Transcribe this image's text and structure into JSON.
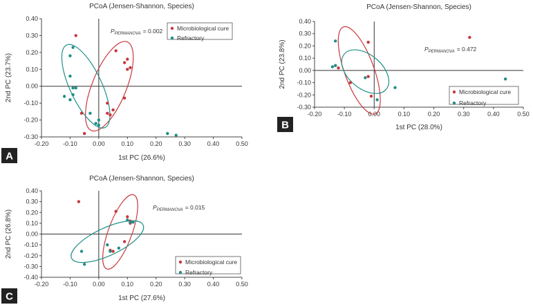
{
  "colors": {
    "cure": "#c8373b",
    "refractory": "#1f8f88",
    "panel_box": "#222222"
  },
  "chart_data": [
    {
      "id": "A",
      "type": "scatter",
      "panel_label": "A",
      "title": "PCoA (Jensen-Shannon, Species)",
      "xlabel": "1st PC (26.6%)",
      "ylabel": "2nd PC (23.7%)",
      "xlim": [
        -0.2,
        0.5
      ],
      "ylim": [
        -0.3,
        0.4
      ],
      "xticks": [
        "-0.20",
        "-0.10",
        "0.00",
        "0.10",
        "0.20",
        "0.30",
        "0.40",
        "0.50"
      ],
      "yticks": [
        "-0.30",
        "-0.20",
        "-0.10",
        "0.00",
        "0.10",
        "0.20",
        "0.30",
        "0.40"
      ],
      "grid": false,
      "legend_position": "top-right",
      "permanova": {
        "prefix": "P",
        "subscript": "PERMANOVA",
        "value": "= 0.002"
      },
      "series": [
        {
          "name": "Microbiological cure",
          "color_key": "cure",
          "points": [
            [
              -0.08,
              0.3
            ],
            [
              0.06,
              0.21
            ],
            [
              0.1,
              0.16
            ],
            [
              0.09,
              0.14
            ],
            [
              0.11,
              0.11
            ],
            [
              0.1,
              0.1
            ],
            [
              0.09,
              -0.07
            ],
            [
              0.03,
              -0.1
            ],
            [
              0.05,
              -0.14
            ],
            [
              0.03,
              -0.16
            ],
            [
              0.04,
              -0.17
            ],
            [
              -0.06,
              -0.16
            ],
            [
              -0.05,
              -0.28
            ]
          ],
          "ellipse": {
            "cx": 0.037,
            "cy": 0.0,
            "rx": 0.21,
            "ry": 0.075,
            "angle_deg": 68
          }
        },
        {
          "name": "Refractory",
          "color_key": "refractory",
          "points": [
            [
              -0.09,
              0.23
            ],
            [
              -0.1,
              0.18
            ],
            [
              -0.1,
              0.06
            ],
            [
              -0.09,
              -0.01
            ],
            [
              -0.08,
              -0.01
            ],
            [
              -0.12,
              -0.06
            ],
            [
              -0.09,
              -0.05
            ],
            [
              -0.1,
              -0.08
            ],
            [
              -0.03,
              -0.16
            ],
            [
              -0.01,
              -0.22
            ],
            [
              0.0,
              -0.2
            ],
            [
              0.24,
              -0.28
            ],
            [
              0.27,
              -0.29
            ],
            [
              0.0,
              -0.23
            ]
          ],
          "ellipse": {
            "cx": -0.045,
            "cy": 0.0,
            "rx": 0.2,
            "ry": 0.07,
            "angle_deg": 115
          }
        }
      ]
    },
    {
      "id": "B",
      "type": "scatter",
      "panel_label": "B",
      "title": "PCoA (Jensen-Shannon, Species)",
      "xlabel": "1st PC (28.0%)",
      "ylabel": "2nd PC (23.8%)",
      "xlim": [
        -0.2,
        0.5
      ],
      "ylim": [
        -0.3,
        0.4
      ],
      "xticks": [
        "-0.20",
        "-0.10",
        "0.00",
        "0.10",
        "0.20",
        "0.30",
        "0.40",
        "0.50"
      ],
      "yticks": [
        "-0.30",
        "-0.20",
        "-0.10",
        "0.00",
        "0.10",
        "0.20",
        "0.30",
        "0.40"
      ],
      "grid": false,
      "legend_position": "bottom-right",
      "permanova": {
        "prefix": "P",
        "subscript": "PERMANOVA",
        "value": "= 0.472"
      },
      "series": [
        {
          "name": "Microbiological cure",
          "color_key": "cure",
          "points": [
            [
              0.32,
              0.27
            ],
            [
              -0.02,
              0.23
            ],
            [
              -0.13,
              0.04
            ],
            [
              -0.12,
              0.02
            ],
            [
              -0.02,
              -0.05
            ],
            [
              -0.08,
              -0.1
            ],
            [
              -0.01,
              -0.21
            ]
          ],
          "ellipse": {
            "cx": -0.05,
            "cy": 0.0,
            "rx": 0.22,
            "ry": 0.07,
            "angle_deg": 110
          }
        },
        {
          "name": "Refractory",
          "color_key": "refractory",
          "points": [
            [
              -0.13,
              0.24
            ],
            [
              -0.13,
              0.04
            ],
            [
              -0.14,
              0.03
            ],
            [
              -0.03,
              -0.06
            ],
            [
              0.07,
              -0.14
            ],
            [
              0.01,
              -0.24
            ],
            [
              0.44,
              -0.07
            ]
          ],
          "ellipse": {
            "cx": -0.03,
            "cy": -0.01,
            "rx": 0.13,
            "ry": 0.08,
            "angle_deg": 140
          }
        }
      ]
    },
    {
      "id": "C",
      "type": "scatter",
      "panel_label": "C",
      "title": "PCoA (Jensen-Shannon, Species)",
      "xlabel": "1st PC (27.6%)",
      "ylabel": "2nd PC (26.8%)",
      "xlim": [
        -0.2,
        0.5
      ],
      "ylim": [
        -0.4,
        0.4
      ],
      "xticks": [
        "-0.20",
        "-0.10",
        "0.00",
        "0.10",
        "0.20",
        "0.30",
        "0.40",
        "0.50"
      ],
      "yticks": [
        "-0.40",
        "-0.30",
        "-0.20",
        "-0.10",
        "0.00",
        "0.10",
        "0.20",
        "0.30",
        "0.40"
      ],
      "grid": false,
      "legend_position": "bottom-right",
      "permanova": {
        "prefix": "P",
        "subscript": "PERMANOVA",
        "value": "= 0.015"
      },
      "series": [
        {
          "name": "Microbiological cure",
          "color_key": "cure",
          "points": [
            [
              -0.07,
              0.3
            ],
            [
              0.06,
              0.21
            ],
            [
              0.1,
              0.16
            ],
            [
              0.11,
              0.12
            ],
            [
              0.11,
              0.1
            ],
            [
              0.09,
              -0.07
            ],
            [
              0.04,
              -0.15
            ],
            [
              0.05,
              -0.16
            ]
          ],
          "ellipse": {
            "cx": 0.075,
            "cy": 0.02,
            "rx": 0.2,
            "ry": 0.06,
            "angle_deg": 70
          }
        },
        {
          "name": "Refractory",
          "color_key": "refractory",
          "points": [
            [
              0.1,
              0.13
            ],
            [
              0.11,
              0.11
            ],
            [
              0.12,
              0.11
            ],
            [
              0.07,
              -0.13
            ],
            [
              0.03,
              -0.1
            ],
            [
              0.04,
              -0.16
            ],
            [
              -0.06,
              -0.16
            ],
            [
              -0.05,
              -0.28
            ]
          ],
          "ellipse": {
            "cx": 0.03,
            "cy": -0.07,
            "rx": 0.2,
            "ry": 0.07,
            "angle_deg": 25
          }
        }
      ]
    }
  ]
}
